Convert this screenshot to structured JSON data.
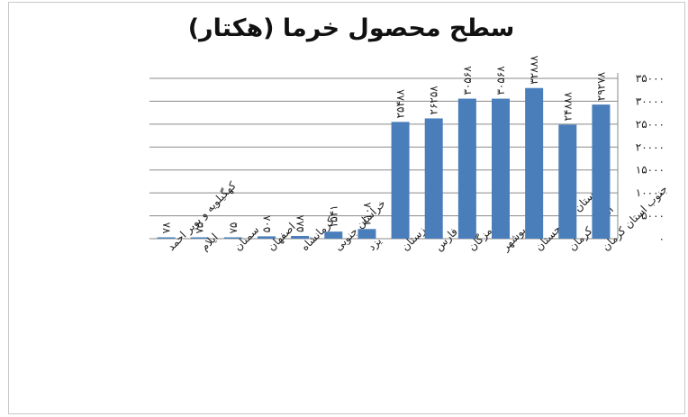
{
  "chart_data": {
    "type": "bar",
    "title": "سطح محصول خرما (هکتار)",
    "xlabel": "",
    "ylabel": "",
    "ylim": [
      0,
      35000
    ],
    "yticks": [
      0,
      5000,
      10000,
      15000,
      20000,
      25000,
      30000,
      35000
    ],
    "ytick_labels": [
      "۰",
      "۵۰۰۰",
      "۱۰۰۰۰",
      "۱۵۰۰۰",
      "۲۰۰۰۰",
      "۲۵۰۰۰",
      "۳۰۰۰۰",
      "۳۵۰۰۰"
    ],
    "grid": true,
    "bar_color": "#4a7ebb",
    "categories": [
      "کهگیلویه و بویر احمد",
      "ایلام",
      "سمنان",
      "اصفهان",
      "کرمانشاه",
      "خراسان جنوبی",
      "یزد",
      "خوزستان",
      "فارس",
      "هرمزگان",
      "بوشهر",
      "سیستان و بلوچستان",
      "استان کرمان",
      "جنوب استان کرمان"
    ],
    "values": [
      78,
      75,
      75,
      508,
      588,
      1541,
      2108,
      25488,
      26258,
      30568,
      30568,
      32888,
      24888,
      29278
    ],
    "data_labels": [
      "۷۸",
      "۷۵",
      "۷۵",
      "۵۰۸",
      "۵۸۸",
      "۱۵۴۱",
      "۲۱۰۸",
      "۲۵۴۸۸",
      "۲۶۲۵۸",
      "۳۰۵۶۸",
      "۳۰۵۶۸",
      "۳۲۸۸۸",
      "۲۴۸۸۸",
      "۲۹۲۷۸"
    ]
  }
}
